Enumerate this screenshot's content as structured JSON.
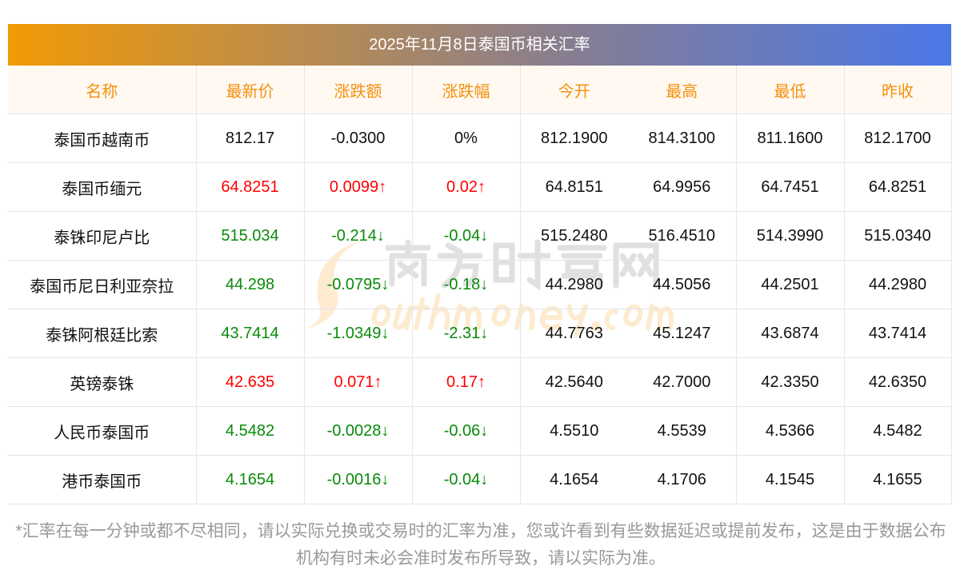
{
  "title": "2025年11月8日泰国币相关汇率",
  "headers": [
    "名称",
    "最新价",
    "涨跌额",
    "涨跌幅",
    "今开",
    "最高",
    "最低",
    "昨收"
  ],
  "rows": [
    {
      "name": "泰国币越南币",
      "price": "812.17",
      "chg": "-0.0300",
      "pct": "0%",
      "open": "812.1900",
      "high": "814.3100",
      "low": "811.1600",
      "prev": "812.1700",
      "trend": "flat"
    },
    {
      "name": "泰国币缅元",
      "price": "64.8251",
      "chg": "0.0099↑",
      "pct": "0.02↑",
      "open": "64.8151",
      "high": "64.9956",
      "low": "64.7451",
      "prev": "64.8251",
      "trend": "up"
    },
    {
      "name": "泰铢印尼卢比",
      "price": "515.034",
      "chg": "-0.214↓",
      "pct": "-0.04↓",
      "open": "515.2480",
      "high": "516.4510",
      "low": "514.3990",
      "prev": "515.0340",
      "trend": "down"
    },
    {
      "name": "泰国币尼日利亚奈拉",
      "price": "44.298",
      "chg": "-0.0795↓",
      "pct": "-0.18↓",
      "open": "44.2980",
      "high": "44.5056",
      "low": "44.2501",
      "prev": "44.2980",
      "trend": "down"
    },
    {
      "name": "泰铢阿根廷比索",
      "price": "43.7414",
      "chg": "-1.0349↓",
      "pct": "-2.31↓",
      "open": "44.7763",
      "high": "45.1247",
      "low": "43.6874",
      "prev": "43.7414",
      "trend": "down"
    },
    {
      "name": "英镑泰铢",
      "price": "42.635",
      "chg": "0.071↑",
      "pct": "0.17↑",
      "open": "42.5640",
      "high": "42.7000",
      "low": "42.3350",
      "prev": "42.6350",
      "trend": "up"
    },
    {
      "name": "人民币泰国币",
      "price": "4.5482",
      "chg": "-0.0028↓",
      "pct": "-0.06↓",
      "open": "4.5510",
      "high": "4.5539",
      "low": "4.5366",
      "prev": "4.5482",
      "trend": "down"
    },
    {
      "name": "港币泰国币",
      "price": "4.1654",
      "chg": "-0.0016↓",
      "pct": "-0.04↓",
      "open": "4.1654",
      "high": "4.1706",
      "low": "4.1545",
      "prev": "4.1655",
      "trend": "down"
    }
  ],
  "watermark": {
    "cn": "南方财富网",
    "en": "Southmoney.com"
  },
  "note": "*汇率在每一分钟或都不尽相同，请以实际兑换或交易时的汇率为准，您或许看到有些数据延迟或提前发布，这是由于数据公布机构有时未必会准时发布所导致，请以实际为准。",
  "colors": {
    "up": "#ff0000",
    "down": "#0a8a0a",
    "header": "#f5900d"
  }
}
